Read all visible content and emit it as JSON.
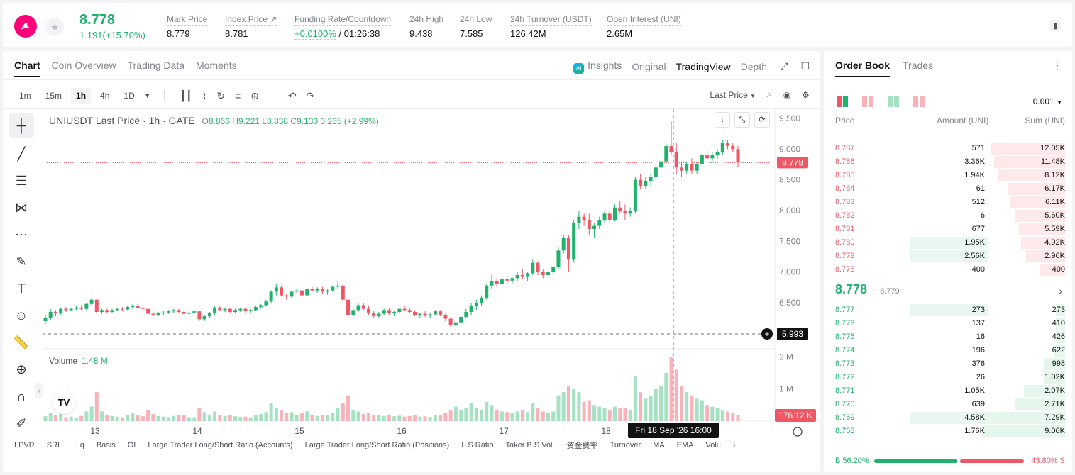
{
  "header": {
    "last_price": "8.778",
    "change": "1.191(+15.70%)",
    "stats": [
      {
        "label": "Mark Price",
        "value": "8.779"
      },
      {
        "label": "Index Price ↗",
        "value": "8.781"
      },
      {
        "label": "Funding Rate/Countdown",
        "value_rate": "+0.0100%",
        "value_countdown": " / 01:26:38"
      },
      {
        "label": "24h High",
        "value": "9.438"
      },
      {
        "label": "24h Low",
        "value": "7.585"
      },
      {
        "label": "24h Turnover (USDT)",
        "value": "126.42M"
      },
      {
        "label": "Open Interest (UNI)",
        "value": "2.65M"
      }
    ]
  },
  "chart_panel": {
    "tabs": [
      "Chart",
      "Coin Overview",
      "Trading Data",
      "Moments"
    ],
    "views": {
      "insights": "Insights",
      "original": "Original",
      "tradingview": "TradingView",
      "depth": "Depth"
    },
    "timeframes": [
      "1m",
      "15m",
      "1h",
      "4h",
      "1D"
    ],
    "price_type": "Last Price",
    "legend": {
      "symbol": "UNIUSDT Last Price · 1h · GATE",
      "o": "8.866",
      "h": "9.221",
      "l": "8.838",
      "c": "9.130",
      "chg": "0.265 (+2.99%)"
    },
    "volume_legend": {
      "label": "Volume",
      "value": "1.48 M"
    },
    "crosshair_price": "5.993",
    "last_price_tag": "8.778",
    "volume_tag": "176.12 K",
    "crosshair_time": "Fri 18 Sep '26   16:00",
    "indicators": [
      "LPVR",
      "SRL",
      "Liq",
      "Basis",
      "OI",
      "Large Trader Long/Short Ratio (Accounts)",
      "Large Trader Long/Short Ratio (Positions)",
      "L.S Ratio",
      "Taker B.S Vol.",
      "资金费率",
      "Turnover",
      "MA",
      "EMA",
      "Volu"
    ]
  },
  "chart_data": {
    "type": "candlestick",
    "price_axis": [
      "9.500",
      "9.000",
      "8.500",
      "8.000",
      "7.500",
      "7.000",
      "6.500"
    ],
    "volume_axis": [
      "2 M",
      "1 M"
    ],
    "x_labels": [
      "13",
      "14",
      "15",
      "16",
      "17",
      "18"
    ],
    "ylim": [
      5.75,
      9.65
    ],
    "candles": [
      [
        6.2,
        6.3,
        6.15,
        6.25,
        0.15
      ],
      [
        6.25,
        6.4,
        6.22,
        6.35,
        0.25
      ],
      [
        6.35,
        6.38,
        6.28,
        6.33,
        0.18
      ],
      [
        6.33,
        6.42,
        6.3,
        6.4,
        0.22
      ],
      [
        6.4,
        6.43,
        6.35,
        6.38,
        0.12
      ],
      [
        6.38,
        6.42,
        6.36,
        6.4,
        0.14
      ],
      [
        6.4,
        6.45,
        6.38,
        6.42,
        0.1
      ],
      [
        6.42,
        6.46,
        6.38,
        6.4,
        0.16
      ],
      [
        6.4,
        6.5,
        6.38,
        6.48,
        0.3
      ],
      [
        6.48,
        6.58,
        6.45,
        6.55,
        0.45
      ],
      [
        6.55,
        6.57,
        6.3,
        6.35,
        0.9
      ],
      [
        6.35,
        6.4,
        6.32,
        6.38,
        0.3
      ],
      [
        6.38,
        6.4,
        6.33,
        6.35,
        0.2
      ],
      [
        6.35,
        6.4,
        6.34,
        6.38,
        0.16
      ],
      [
        6.38,
        6.42,
        6.36,
        6.4,
        0.14
      ],
      [
        6.4,
        6.43,
        6.37,
        6.39,
        0.12
      ],
      [
        6.39,
        6.45,
        6.38,
        6.43,
        0.2
      ],
      [
        6.43,
        6.48,
        6.4,
        6.45,
        0.24
      ],
      [
        6.45,
        6.48,
        6.4,
        6.42,
        0.18
      ],
      [
        6.42,
        6.45,
        6.38,
        6.4,
        0.15
      ],
      [
        6.4,
        6.42,
        6.3,
        6.32,
        0.35
      ],
      [
        6.32,
        6.35,
        6.28,
        6.3,
        0.22
      ],
      [
        6.3,
        6.35,
        6.28,
        6.33,
        0.16
      ],
      [
        6.33,
        6.37,
        6.3,
        6.34,
        0.14
      ],
      [
        6.34,
        6.38,
        6.32,
        6.36,
        0.13
      ],
      [
        6.36,
        6.4,
        6.34,
        6.38,
        0.16
      ],
      [
        6.38,
        6.4,
        6.33,
        6.35,
        0.18
      ],
      [
        6.35,
        6.37,
        6.3,
        6.32,
        0.2
      ],
      [
        6.32,
        6.36,
        6.3,
        6.34,
        0.12
      ],
      [
        6.34,
        6.38,
        6.33,
        6.36,
        0.12
      ],
      [
        6.36,
        6.37,
        6.2,
        6.23,
        0.4
      ],
      [
        6.23,
        6.3,
        6.2,
        6.28,
        0.28
      ],
      [
        6.28,
        6.35,
        6.25,
        6.33,
        0.2
      ],
      [
        6.33,
        6.45,
        6.3,
        6.42,
        0.3
      ],
      [
        6.42,
        6.45,
        6.36,
        6.38,
        0.2
      ],
      [
        6.38,
        6.42,
        6.35,
        6.4,
        0.16
      ],
      [
        6.4,
        6.42,
        6.33,
        6.35,
        0.18
      ],
      [
        6.35,
        6.4,
        6.33,
        6.38,
        0.15
      ],
      [
        6.38,
        6.42,
        6.35,
        6.4,
        0.13
      ],
      [
        6.4,
        6.42,
        6.34,
        6.36,
        0.14
      ],
      [
        6.36,
        6.4,
        6.34,
        6.38,
        0.12
      ],
      [
        6.38,
        6.45,
        6.36,
        6.43,
        0.2
      ],
      [
        6.43,
        6.48,
        6.4,
        6.46,
        0.22
      ],
      [
        6.46,
        6.55,
        6.44,
        6.52,
        0.28
      ],
      [
        6.52,
        6.7,
        6.5,
        6.68,
        0.55
      ],
      [
        6.68,
        6.8,
        6.62,
        6.75,
        0.4
      ],
      [
        6.75,
        6.78,
        6.6,
        6.62,
        0.35
      ],
      [
        6.62,
        6.65,
        6.55,
        6.6,
        0.25
      ],
      [
        6.6,
        6.7,
        6.58,
        6.68,
        0.28
      ],
      [
        6.68,
        6.75,
        6.65,
        6.7,
        0.2
      ],
      [
        6.7,
        6.74,
        6.6,
        6.62,
        0.24
      ],
      [
        6.62,
        6.75,
        6.6,
        6.72,
        0.3
      ],
      [
        6.72,
        6.76,
        6.68,
        6.7,
        0.18
      ],
      [
        6.7,
        6.75,
        6.66,
        6.73,
        0.16
      ],
      [
        6.73,
        6.76,
        6.65,
        6.68,
        0.2
      ],
      [
        6.68,
        6.72,
        6.63,
        6.7,
        0.18
      ],
      [
        6.7,
        6.78,
        6.68,
        6.76,
        0.26
      ],
      [
        6.76,
        6.85,
        6.72,
        6.78,
        0.4
      ],
      [
        6.78,
        6.8,
        6.5,
        6.55,
        0.55
      ],
      [
        6.55,
        6.58,
        6.2,
        6.3,
        0.8
      ],
      [
        6.3,
        6.4,
        6.25,
        6.38,
        0.35
      ],
      [
        6.38,
        6.5,
        6.35,
        6.46,
        0.3
      ],
      [
        6.46,
        6.5,
        6.38,
        6.4,
        0.22
      ],
      [
        6.4,
        6.45,
        6.3,
        6.33,
        0.25
      ],
      [
        6.33,
        6.36,
        6.25,
        6.28,
        0.2
      ],
      [
        6.28,
        6.35,
        6.25,
        6.32,
        0.18
      ],
      [
        6.32,
        6.4,
        6.3,
        6.38,
        0.16
      ],
      [
        6.38,
        6.42,
        6.3,
        6.33,
        0.2
      ],
      [
        6.33,
        6.37,
        6.28,
        6.35,
        0.15
      ],
      [
        6.35,
        6.42,
        6.32,
        6.4,
        0.17
      ],
      [
        6.4,
        6.45,
        6.36,
        6.38,
        0.14
      ],
      [
        6.38,
        6.42,
        6.33,
        6.35,
        0.16
      ],
      [
        6.35,
        6.38,
        6.28,
        6.3,
        0.18
      ],
      [
        6.3,
        6.34,
        6.26,
        6.32,
        0.14
      ],
      [
        6.32,
        6.36,
        6.27,
        6.29,
        0.15
      ],
      [
        6.29,
        6.33,
        6.25,
        6.31,
        0.13
      ],
      [
        6.31,
        6.38,
        6.3,
        6.36,
        0.18
      ],
      [
        6.36,
        6.38,
        6.28,
        6.3,
        0.2
      ],
      [
        6.3,
        6.33,
        6.2,
        6.24,
        0.25
      ],
      [
        6.24,
        6.27,
        6.1,
        6.13,
        0.35
      ],
      [
        6.13,
        6.2,
        5.99,
        6.18,
        0.45
      ],
      [
        6.18,
        6.3,
        6.12,
        6.27,
        0.35
      ],
      [
        6.27,
        6.4,
        6.25,
        6.35,
        0.4
      ],
      [
        6.35,
        6.5,
        6.3,
        6.45,
        0.55
      ],
      [
        6.45,
        6.55,
        6.38,
        6.5,
        0.4
      ],
      [
        6.5,
        6.62,
        6.45,
        6.58,
        0.35
      ],
      [
        6.58,
        6.8,
        6.55,
        6.78,
        0.6
      ],
      [
        6.78,
        6.95,
        6.72,
        6.85,
        0.5
      ],
      [
        6.85,
        6.9,
        6.75,
        6.8,
        0.35
      ],
      [
        6.8,
        6.9,
        6.78,
        6.88,
        0.3
      ],
      [
        6.88,
        6.95,
        6.82,
        6.86,
        0.28
      ],
      [
        6.86,
        6.92,
        6.8,
        6.9,
        0.25
      ],
      [
        6.9,
        7.0,
        6.85,
        6.95,
        0.3
      ],
      [
        6.95,
        7.05,
        6.88,
        6.92,
        0.35
      ],
      [
        6.92,
        7.0,
        6.85,
        6.98,
        0.28
      ],
      [
        6.98,
        7.2,
        6.95,
        7.15,
        0.55
      ],
      [
        7.15,
        7.18,
        6.95,
        7.0,
        0.4
      ],
      [
        7.0,
        7.05,
        6.9,
        6.95,
        0.3
      ],
      [
        6.95,
        7.05,
        6.92,
        7.0,
        0.25
      ],
      [
        7.0,
        7.1,
        6.95,
        7.08,
        0.3
      ],
      [
        7.08,
        7.4,
        7.05,
        7.35,
        0.8
      ],
      [
        7.35,
        7.6,
        7.3,
        7.55,
        0.9
      ],
      [
        7.55,
        7.6,
        7.0,
        7.2,
        1.1
      ],
      [
        7.2,
        7.85,
        7.15,
        7.8,
        1.0
      ],
      [
        7.8,
        8.0,
        7.7,
        7.9,
        0.9
      ],
      [
        7.9,
        7.95,
        7.75,
        7.85,
        0.6
      ],
      [
        7.85,
        7.95,
        7.6,
        7.7,
        0.65
      ],
      [
        7.7,
        7.8,
        7.55,
        7.75,
        0.5
      ],
      [
        7.75,
        7.9,
        7.7,
        7.85,
        0.45
      ],
      [
        7.85,
        8.0,
        7.8,
        7.95,
        0.4
      ],
      [
        7.95,
        8.0,
        7.8,
        7.85,
        0.35
      ],
      [
        7.85,
        8.1,
        7.82,
        8.05,
        0.45
      ],
      [
        8.05,
        8.15,
        7.95,
        8.0,
        0.4
      ],
      [
        8.0,
        8.1,
        7.85,
        7.95,
        0.4
      ],
      [
        7.95,
        8.05,
        7.9,
        8.0,
        0.35
      ],
      [
        8.0,
        8.55,
        7.95,
        8.5,
        1.4
      ],
      [
        8.5,
        8.6,
        8.35,
        8.4,
        0.9
      ],
      [
        8.4,
        8.55,
        8.35,
        8.48,
        0.7
      ],
      [
        8.48,
        8.6,
        8.4,
        8.55,
        0.8
      ],
      [
        8.55,
        8.75,
        8.5,
        8.7,
        1.0
      ],
      [
        8.7,
        8.85,
        8.6,
        8.8,
        1.1
      ],
      [
        8.8,
        9.1,
        8.75,
        9.05,
        1.5
      ],
      [
        9.05,
        9.45,
        8.9,
        8.95,
        2.0
      ],
      [
        8.95,
        9.1,
        8.6,
        8.7,
        1.6
      ],
      [
        8.7,
        8.8,
        8.55,
        8.65,
        1.1
      ],
      [
        8.65,
        8.8,
        8.6,
        8.75,
        0.9
      ],
      [
        8.75,
        8.85,
        8.6,
        8.65,
        0.8
      ],
      [
        8.65,
        8.8,
        8.6,
        8.75,
        0.7
      ],
      [
        8.75,
        8.95,
        8.7,
        8.9,
        0.65
      ],
      [
        8.9,
        9.0,
        8.8,
        8.85,
        0.5
      ],
      [
        8.85,
        8.95,
        8.8,
        8.9,
        0.45
      ],
      [
        8.9,
        9.0,
        8.85,
        8.95,
        0.4
      ],
      [
        8.95,
        9.15,
        8.9,
        9.1,
        0.35
      ],
      [
        9.1,
        9.15,
        9.0,
        9.05,
        0.3
      ],
      [
        9.05,
        9.1,
        8.95,
        9.0,
        0.25
      ],
      [
        9.0,
        9.05,
        8.7,
        8.78,
        0.18
      ]
    ]
  },
  "order_book": {
    "tabs": [
      "Order Book",
      "Trades"
    ],
    "precision": "0.001",
    "headers": {
      "price": "Price",
      "amount": "Amount (UNI)",
      "sum": "Sum (UNI)"
    },
    "asks": [
      {
        "price": "8.787",
        "amount": "571",
        "sum": "12.05K",
        "depth": 0.32,
        "amt": 0
      },
      {
        "price": "8.786",
        "amount": "3.36K",
        "sum": "11.48K",
        "depth": 0.31,
        "amt": 0
      },
      {
        "price": "8.785",
        "amount": "1.94K",
        "sum": "8.12K",
        "depth": 0.29,
        "amt": 0
      },
      {
        "price": "8.784",
        "amount": "61",
        "sum": "6.17K",
        "depth": 0.25,
        "amt": 0
      },
      {
        "price": "8.783",
        "amount": "512",
        "sum": "6.11K",
        "depth": 0.24,
        "amt": 0
      },
      {
        "price": "8.782",
        "amount": "6",
        "sum": "5.60K",
        "depth": 0.22,
        "amt": 0
      },
      {
        "price": "8.781",
        "amount": "677",
        "sum": "5.59K",
        "depth": 0.2,
        "amt": 0
      },
      {
        "price": "8.780",
        "amount": "1.95K",
        "sum": "4.92K",
        "depth": 0.19,
        "amt": 0.34
      },
      {
        "price": "8.779",
        "amount": "2.56K",
        "sum": "2.96K",
        "depth": 0.17,
        "amt": 0.34
      },
      {
        "price": "8.778",
        "amount": "400",
        "sum": "400",
        "depth": 0.11,
        "amt": 0
      }
    ],
    "mid": {
      "price": "8.778",
      "arrow": "↑",
      "mark": "8.779"
    },
    "bids": [
      {
        "price": "8.777",
        "amount": "273",
        "sum": "273",
        "depth": 0.04,
        "amt": 0.34
      },
      {
        "price": "8.776",
        "amount": "137",
        "sum": "410",
        "depth": 0.04,
        "amt": 0
      },
      {
        "price": "8.775",
        "amount": "16",
        "sum": "426",
        "depth": 0.04,
        "amt": 0
      },
      {
        "price": "8.774",
        "amount": "196",
        "sum": "622",
        "depth": 0.05,
        "amt": 0
      },
      {
        "price": "8.773",
        "amount": "376",
        "sum": "998",
        "depth": 0.09,
        "amt": 0
      },
      {
        "price": "8.772",
        "amount": "26",
        "sum": "1.02K",
        "depth": 0.09,
        "amt": 0
      },
      {
        "price": "8.771",
        "amount": "1.05K",
        "sum": "2.07K",
        "depth": 0.18,
        "amt": 0
      },
      {
        "price": "8.770",
        "amount": "639",
        "sum": "2.71K",
        "depth": 0.22,
        "amt": 0
      },
      {
        "price": "8.769",
        "amount": "4.58K",
        "sum": "7.29K",
        "depth": 0.36,
        "amt": 0.36
      },
      {
        "price": "8.768",
        "amount": "1.76K",
        "sum": "9.06K",
        "depth": 0.36,
        "amt": 0
      }
    ],
    "ratio": {
      "buy": "B 56.20%",
      "sell": "43.80% S",
      "buy_pct": 56.2
    },
    "colors": {
      "green": "#20b26c",
      "red": "#f05764"
    }
  }
}
